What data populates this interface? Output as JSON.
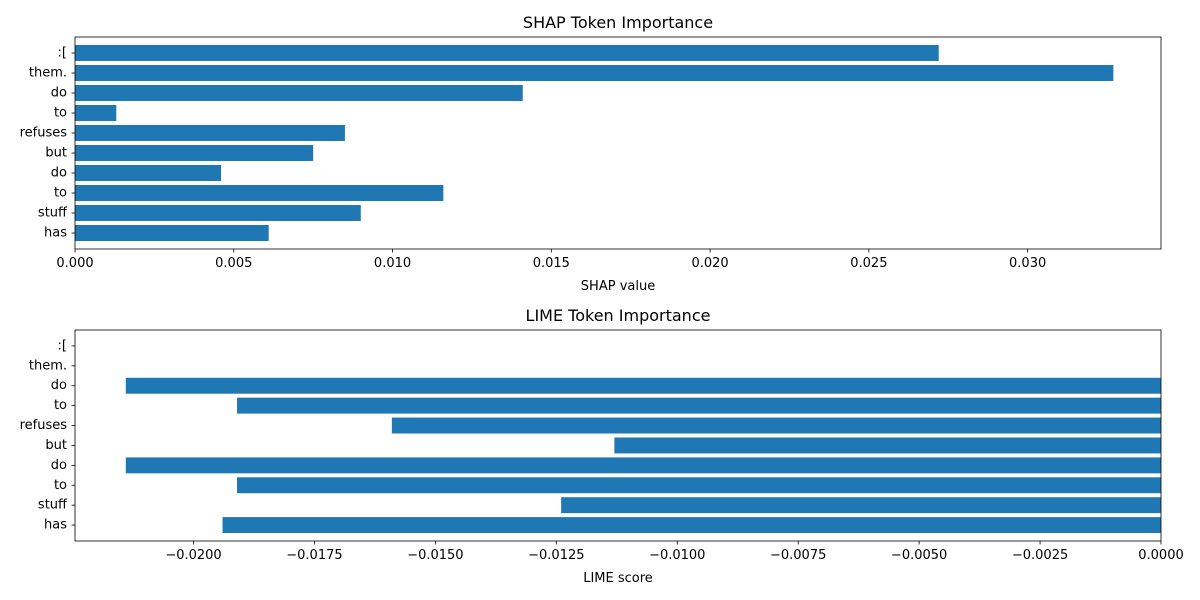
{
  "chart_data": [
    {
      "type": "bar",
      "orientation": "horizontal",
      "title": "SHAP Token Importance",
      "xlabel": "SHAP value",
      "ylabel": "",
      "xlim": [
        0,
        0.0342
      ],
      "xticks": [
        0,
        0.005,
        0.01,
        0.015,
        0.02,
        0.025,
        0.03
      ],
      "xtick_labels": [
        "0.000",
        "0.005",
        "0.010",
        "0.015",
        "0.020",
        "0.025",
        "0.030"
      ],
      "categories": [
        ":[",
        "them.",
        "do",
        "to",
        "refuses",
        "but",
        "do",
        "to",
        "stuff",
        "has"
      ],
      "values": [
        0.0272,
        0.0327,
        0.0141,
        0.0013,
        0.0085,
        0.0075,
        0.0046,
        0.0116,
        0.009,
        0.0061
      ],
      "color": "#1f77b4",
      "grid": false,
      "legend": "none"
    },
    {
      "type": "bar",
      "orientation": "horizontal",
      "title": "LIME Token Importance",
      "xlabel": "LIME score",
      "ylabel": "",
      "xlim": [
        -0.02245,
        0
      ],
      "xticks": [
        -0.02,
        -0.0175,
        -0.015,
        -0.0125,
        -0.01,
        -0.0075,
        -0.005,
        -0.0025,
        0
      ],
      "xtick_labels": [
        "−0.0200",
        "−0.0175",
        "−0.0150",
        "−0.0125",
        "−0.0100",
        "−0.0075",
        "−0.0050",
        "−0.0025",
        "0.0000"
      ],
      "categories": [
        ":[",
        "them.",
        "do",
        "to",
        "refuses",
        "but",
        "do",
        "to",
        "stuff",
        "has"
      ],
      "values": [
        0,
        0,
        -0.0214,
        -0.0191,
        -0.0159,
        -0.0113,
        -0.0214,
        -0.0191,
        -0.0124,
        -0.0194
      ],
      "color": "#1f77b4",
      "grid": false,
      "legend": "none"
    }
  ]
}
